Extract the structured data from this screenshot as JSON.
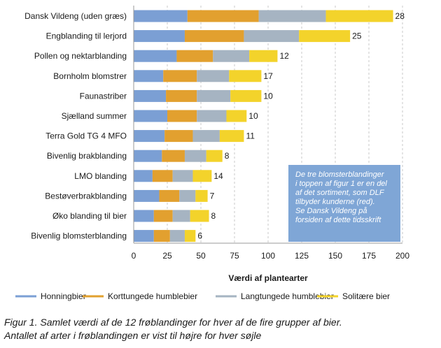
{
  "chart_data": {
    "type": "bar",
    "orientation": "horizontal",
    "stacked": true,
    "categories": [
      "Dansk Vildeng (uden græs)",
      "Engblanding til lerjord",
      "Pollen og nektarblanding",
      "Bornholm blomstrer",
      "Faunastriber",
      "Sjælland summer",
      "Terra Gold TG 4 MFO",
      "Bivenlig brakblanding",
      "LMO blanding",
      "Bestøverbrakblanding",
      "Øko blanding til bier",
      "Bivenlig blomsterblanding"
    ],
    "series": [
      {
        "name": "Honningbier",
        "color": "#7b9fd4",
        "values": [
          40,
          38,
          32,
          22,
          24,
          25,
          23,
          21,
          14,
          19,
          15,
          15
        ]
      },
      {
        "name": "Korttungede humblebier",
        "color": "#e2a02f",
        "values": [
          53,
          44,
          27,
          25,
          23,
          22,
          21,
          17,
          15,
          15,
          14,
          12
        ]
      },
      {
        "name": "Langtungede humblebier",
        "color": "#a6b4c2",
        "values": [
          50,
          41,
          27,
          24,
          25,
          22,
          20,
          16,
          15,
          12,
          13,
          11
        ]
      },
      {
        "name": "Solitære bier",
        "color": "#f3d32b",
        "values": [
          50,
          38,
          21,
          24,
          23,
          15,
          18,
          12,
          14,
          9,
          14,
          8
        ]
      }
    ],
    "species_counts": [
      "28",
      "25",
      "12",
      "17",
      "10",
      "10",
      "11",
      "8",
      "14",
      "7",
      "8",
      "6"
    ],
    "xlabel": "Værdi af plantearter",
    "xlim": [
      0,
      200
    ],
    "xticks": [
      "0",
      "25",
      "50",
      "75",
      "100",
      "125",
      "150",
      "175",
      "200"
    ],
    "grid": "vertical",
    "legend": "bottom"
  },
  "note": {
    "lines": [
      "De tre blomsterblandinger",
      "i toppen af figur 1 er en del",
      "af det sortiment, som DLF",
      "tilbyder kunderne (red).",
      "Se Dansk Vildeng på",
      "forsiden af dette tidsskrift"
    ],
    "bg_color": "#7fa6d6"
  },
  "caption": {
    "line1": "Figur 1. Samlet værdi af de 12 frøblandinger for hver af de fire grupper af bier.",
    "line2": "Antallet af arter i frøblandingen er vist til højre for hver søjle"
  }
}
